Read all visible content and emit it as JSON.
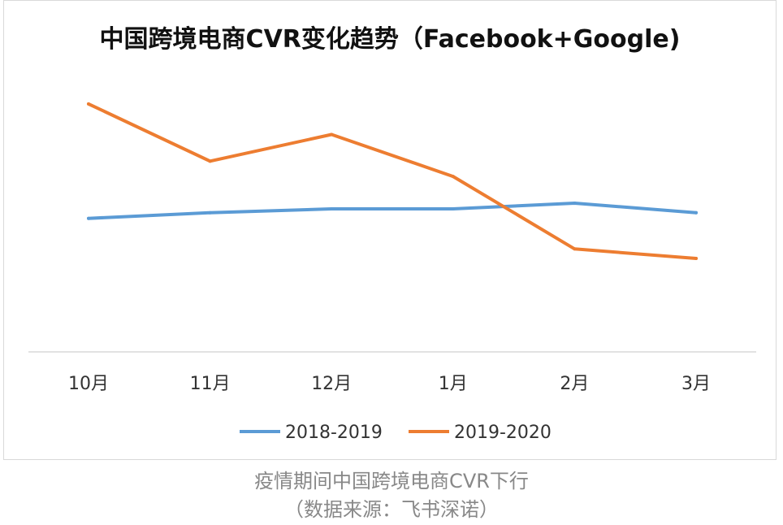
{
  "chart_data": {
    "type": "line",
    "title": "中国跨境电商CVR变化趋势（Facebook+Google)",
    "categories": [
      "10月",
      "11月",
      "12月",
      "1月",
      "2月",
      "3月"
    ],
    "series": [
      {
        "name": "2018-2019",
        "color": "#5b9bd5",
        "values": [
          3.5,
          3.65,
          3.75,
          3.75,
          3.9,
          3.65
        ]
      },
      {
        "name": "2019-2020",
        "color": "#ed7d31",
        "values": [
          6.5,
          5.0,
          5.7,
          4.6,
          2.7,
          2.45
        ]
      }
    ],
    "ylim": [
      0,
      7.5
    ],
    "xlabel": "",
    "ylabel": "",
    "grid": false,
    "legend": "bottom"
  },
  "caption": {
    "line1": "疫情期间中国跨境电商CVR下行",
    "line2": "（数据来源：飞书深诺）"
  }
}
